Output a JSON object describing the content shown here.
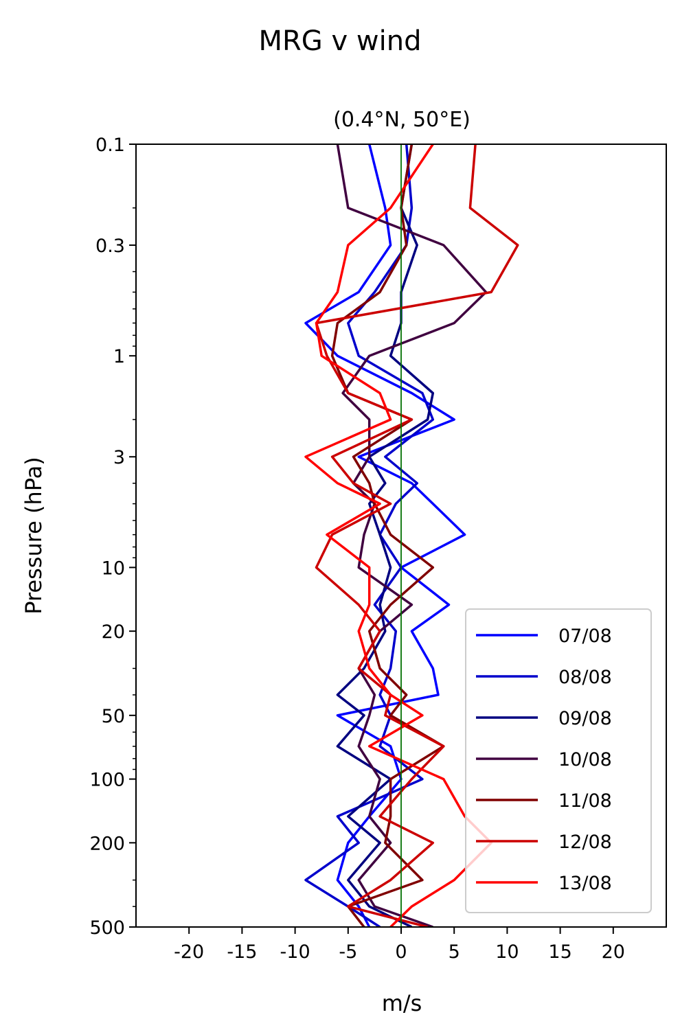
{
  "chart_data": {
    "type": "line",
    "title": "MRG v wind",
    "subtitle": "(0.4°N, 50°E)",
    "xlabel": "m/s",
    "ylabel": "Pressure (hPa)",
    "xlim": [
      -25,
      25
    ],
    "ylim": [
      500,
      0.1
    ],
    "yscale": "log",
    "x_ticks": [
      -20,
      -15,
      -10,
      -5,
      0,
      5,
      10,
      15,
      20
    ],
    "x_tick_labels": [
      "-20",
      "-15",
      "-10",
      "-5",
      "0",
      "5",
      "10",
      "15",
      "20"
    ],
    "y_ticks": [
      0.1,
      0.3,
      1,
      3,
      10,
      20,
      50,
      100,
      200,
      500
    ],
    "y_tick_labels": [
      "0.1",
      "0.3",
      "1",
      "3",
      "10",
      "20",
      "50",
      "100",
      "200",
      "500"
    ],
    "reference_line": {
      "x": 0,
      "color": "#007000"
    },
    "legend_position": "lower-right",
    "grid": false,
    "pressure_levels": [
      0.1,
      0.2,
      0.3,
      0.5,
      0.7,
      1,
      1.5,
      2,
      3,
      4,
      5,
      7,
      10,
      15,
      20,
      30,
      40,
      50,
      70,
      100,
      150,
      200,
      300,
      400,
      500
    ],
    "series": [
      {
        "name": "07/08",
        "color": "#0000ff",
        "values": [
          -3.0,
          -1.5,
          -1.0,
          -4.0,
          -9.0,
          -6.0,
          1.0,
          5.0,
          -4.0,
          1.0,
          3.0,
          6.0,
          0.0,
          4.5,
          1.0,
          3.0,
          3.5,
          -6.0,
          -1.0,
          0.0,
          -3.0,
          -5.0,
          -6.0,
          -4.0,
          -3.0
        ]
      },
      {
        "name": "08/08",
        "color": "#0000cc",
        "values": [
          0.5,
          1.0,
          0.5,
          -2.5,
          -5.0,
          -4.0,
          2.0,
          3.0,
          -1.5,
          1.5,
          -0.5,
          -2.0,
          0.0,
          -2.5,
          -0.5,
          -1.0,
          -2.0,
          -1.0,
          -2.0,
          2.0,
          -6.0,
          -4.0,
          -9.0,
          -5.0,
          -2.0
        ]
      },
      {
        "name": "09/08",
        "color": "#000080",
        "values": [
          1.0,
          0.0,
          1.5,
          0.0,
          0.0,
          -1.0,
          3.0,
          2.5,
          -3.0,
          -1.5,
          -3.0,
          -2.0,
          -1.0,
          -2.0,
          -1.5,
          -3.5,
          -6.0,
          -3.5,
          -6.0,
          -1.0,
          -5.0,
          -2.0,
          -5.0,
          -3.0,
          1.0
        ]
      },
      {
        "name": "10/08",
        "color": "#400040",
        "values": [
          -6.0,
          -5.0,
          4.0,
          8.0,
          5.0,
          -3.0,
          -5.5,
          -3.0,
          -3.0,
          -4.5,
          -2.5,
          -3.5,
          -4.0,
          1.0,
          -2.0,
          -4.0,
          -2.5,
          -3.0,
          -4.0,
          -2.0,
          -3.0,
          -1.0,
          -4.0,
          -2.5,
          3.0
        ]
      },
      {
        "name": "11/08",
        "color": "#800000",
        "values": [
          1.0,
          0.0,
          0.5,
          -2.0,
          -6.0,
          -6.5,
          -5.0,
          1.0,
          -4.5,
          -3.0,
          -2.5,
          -1.0,
          3.0,
          -1.0,
          -3.0,
          -2.0,
          0.5,
          -1.0,
          4.0,
          -1.0,
          -1.0,
          -1.5,
          2.0,
          -5.0,
          -3.5
        ]
      },
      {
        "name": "12/08",
        "color": "#cc0000",
        "values": [
          7.0,
          6.5,
          11.0,
          8.5,
          -8.0,
          -7.0,
          -5.0,
          1.0,
          -6.5,
          -4.5,
          -1.0,
          -6.5,
          -8.0,
          -4.0,
          -2.0,
          -4.0,
          -1.0,
          -1.5,
          4.0,
          1.0,
          -2.0,
          3.0,
          -1.0,
          -5.0,
          2.5
        ]
      },
      {
        "name": "13/08",
        "color": "#ff0000",
        "values": [
          3.0,
          -1.0,
          -5.0,
          -6.0,
          -8.0,
          -7.5,
          -2.0,
          -1.0,
          -9.0,
          -6.0,
          -2.0,
          -7.0,
          -3.0,
          -3.0,
          -4.0,
          -3.0,
          -1.0,
          2.0,
          -3.0,
          4.0,
          6.0,
          8.5,
          5.0,
          1.0,
          -1.0
        ]
      }
    ]
  }
}
